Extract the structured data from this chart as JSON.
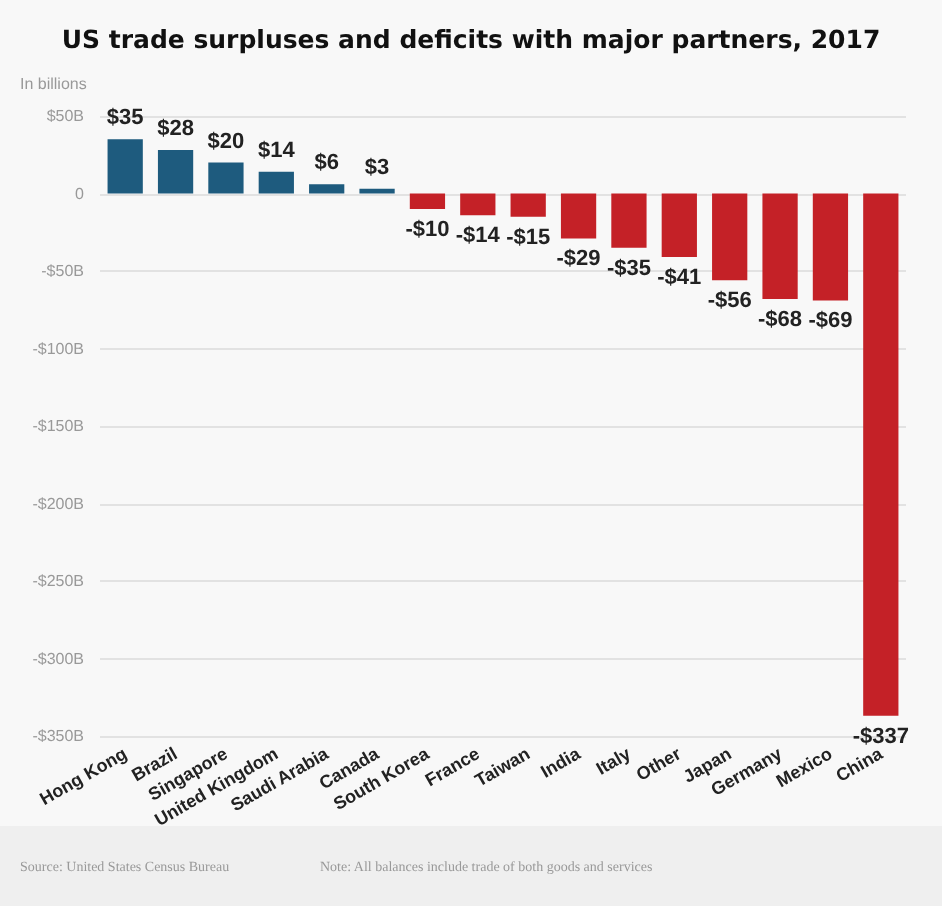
{
  "chart_data": {
    "type": "bar",
    "title": "US trade surpluses and deficits with major partners, 2017",
    "ylabel": "In billions",
    "categories": [
      "Hong Kong",
      "Brazil",
      "Singapore",
      "United Kingdom",
      "Saudi Arabia",
      "Canada",
      "South Korea",
      "France",
      "Taiwan",
      "India",
      "Italy",
      "Other",
      "Japan",
      "Germany",
      "Mexico",
      "China"
    ],
    "values": [
      35,
      28,
      20,
      14,
      6,
      3,
      -10,
      -14,
      -15,
      -29,
      -35,
      -41,
      -56,
      -68,
      -69,
      -337
    ],
    "value_labels": [
      "$35",
      "$28",
      "$20",
      "$14",
      "$6",
      "$3",
      "-$10",
      "-$14",
      "-$15",
      "-$29",
      "-$35",
      "-$41",
      "-$56",
      "-$68",
      "-$69",
      "-$337"
    ],
    "colors": [
      "#1e5b7e",
      "#1e5b7e",
      "#1e5b7e",
      "#1e5b7e",
      "#1e5b7e",
      "#1e5b7e",
      "#c42127",
      "#c42127",
      "#c42127",
      "#c42127",
      "#c42127",
      "#c42127",
      "#c42127",
      "#c42127",
      "#c42127",
      "#c42127"
    ],
    "ylim": [
      -350,
      50
    ],
    "yticks": [
      {
        "value": 50,
        "label": "$50B"
      },
      0,
      {
        "value": -50,
        "label": "-$50B"
      },
      {
        "value": -100,
        "label": "-$100B"
      },
      {
        "value": -150,
        "label": "-$150B"
      },
      {
        "value": -200,
        "label": "-$200B"
      },
      {
        "value": -250,
        "label": "-$250B"
      },
      {
        "value": -300,
        "label": "-$300B"
      },
      {
        "value": -350,
        "label": "-$350B"
      }
    ],
    "grid": "y",
    "annotations": [
      "Source: United States Census Bureau",
      "Note: All balances include trade of both goods and services"
    ]
  }
}
